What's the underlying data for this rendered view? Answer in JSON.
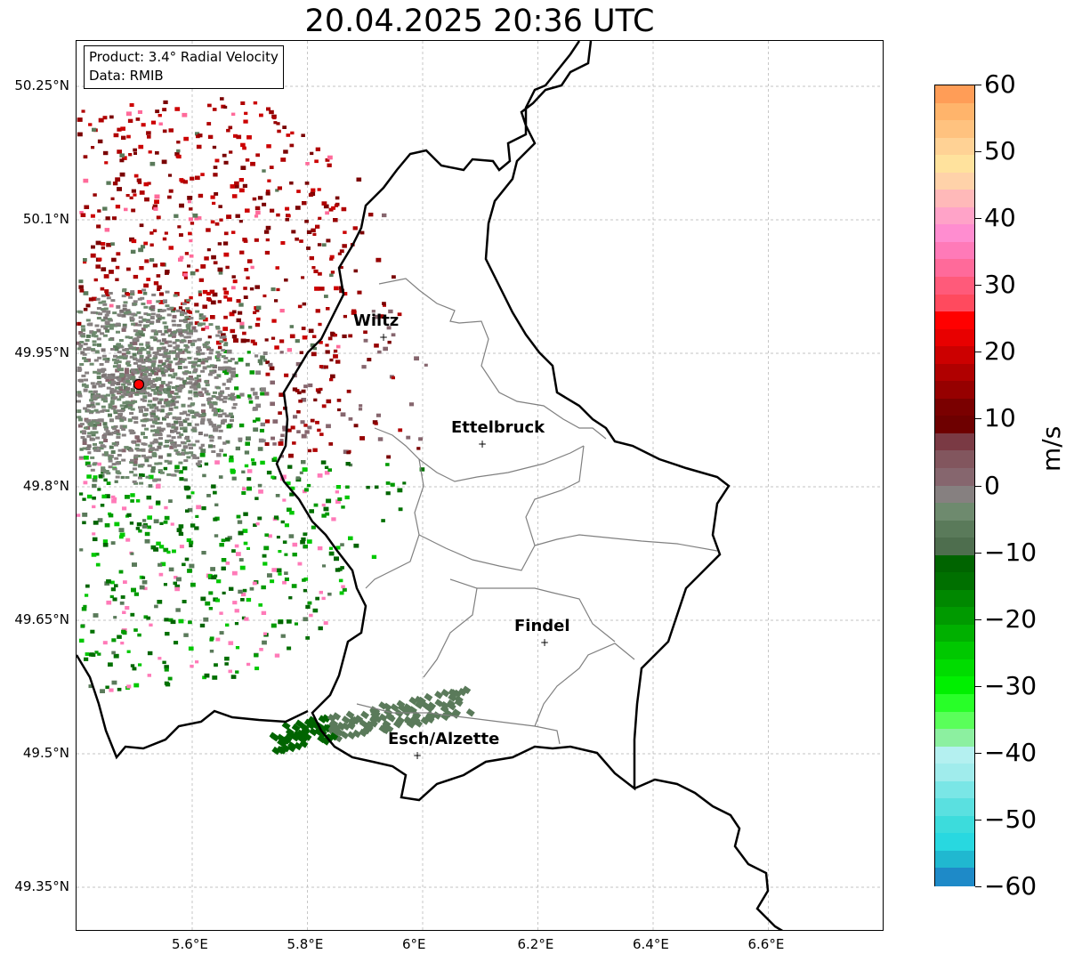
{
  "title": "20.04.2025 20:36 UTC",
  "info": {
    "product": "Product: 3.4° Radial Velocity",
    "data": "Data: RMIB"
  },
  "map": {
    "x_ticks": [
      {
        "label": "5.6°E",
        "lon": 5.6
      },
      {
        "label": "5.8°E",
        "lon": 5.8
      },
      {
        "label": "6°E",
        "lon": 6.0
      },
      {
        "label": "6.2°E",
        "lon": 6.2
      },
      {
        "label": "6.4°E",
        "lon": 6.4
      },
      {
        "label": "6.6°E",
        "lon": 6.6
      }
    ],
    "y_ticks": [
      {
        "label": "50.25°N",
        "lat": 50.25
      },
      {
        "label": "50.1°N",
        "lat": 50.1
      },
      {
        "label": "49.95°N",
        "lat": 49.95
      },
      {
        "label": "49.8°N",
        "lat": 49.8
      },
      {
        "label": "49.65°N",
        "lat": 49.65
      },
      {
        "label": "49.5°N",
        "lat": 49.5
      },
      {
        "label": "49.35°N",
        "lat": 49.35
      }
    ],
    "cities": [
      {
        "name": "Wiltz"
      },
      {
        "name": "Ettelbruck"
      },
      {
        "name": "Findel"
      },
      {
        "name": "Esch/Alzette"
      }
    ],
    "radar_site_color": "#ff0000",
    "border_color": "#000000",
    "canton_color": "#808080"
  },
  "colorbar": {
    "label": "m/s",
    "ticks": [
      "60",
      "50",
      "40",
      "30",
      "20",
      "10",
      "0",
      "−10",
      "−20",
      "−30",
      "−40",
      "−50",
      "−60"
    ],
    "min": -60,
    "max": 60,
    "colors_top_to_bottom": [
      "#ff9d57",
      "#ffb46b",
      "#ffc27f",
      "#ffd295",
      "#ffe29d",
      "#ffd2a9",
      "#ffb9b9",
      "#ffa3c8",
      "#ff8dd0",
      "#ff7ab8",
      "#ff6a9a",
      "#ff5a7a",
      "#ff4a5e",
      "#ff0000",
      "#e80000",
      "#cc0000",
      "#b00000",
      "#960000",
      "#7a0000",
      "#6e0000",
      "#7a3a44",
      "#82565e",
      "#86666e",
      "#868080",
      "#6e8a6e",
      "#5a7a5a",
      "#4e6e4e",
      "#006400",
      "#007000",
      "#008800",
      "#009a00",
      "#00b000",
      "#00c800",
      "#00dc00",
      "#00f000",
      "#28ff28",
      "#5aff5a",
      "#8cf0a0",
      "#b4f0f0",
      "#a0ecec",
      "#7ae6e6",
      "#5ae0e0",
      "#3cdcdc",
      "#28d8e0",
      "#20b8d0",
      "#1e8ac8"
    ]
  }
}
